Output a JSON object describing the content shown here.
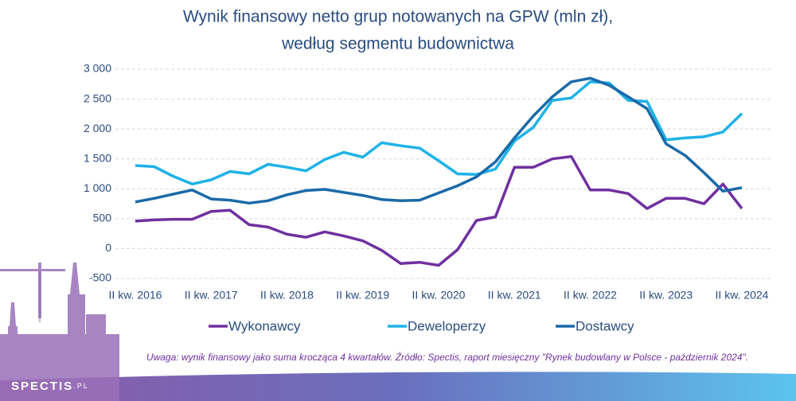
{
  "chart_data": {
    "type": "line",
    "title": [
      "Wynik finansowy netto grup notowanych na GPW (mln zł),",
      "według segmentu budownictwa"
    ],
    "categories": [
      "II kw. 2016",
      null,
      null,
      null,
      "II kw. 2017",
      null,
      null,
      null,
      "II kw. 2018",
      null,
      null,
      null,
      "II kw. 2019",
      null,
      null,
      null,
      "II kw. 2020",
      null,
      null,
      null,
      "II kw. 2021",
      null,
      null,
      null,
      "II kw. 2022",
      null,
      null,
      null,
      "II kw. 2023",
      null,
      null,
      null,
      "II kw. 2024"
    ],
    "series": [
      {
        "name": "Wykonawcy",
        "color": "#7030a0",
        "values": [
          460,
          480,
          490,
          490,
          620,
          640,
          400,
          360,
          240,
          190,
          280,
          210,
          130,
          -30,
          -250,
          -230,
          -280,
          -20,
          470,
          530,
          1360,
          1360,
          1500,
          1540,
          980,
          980,
          920,
          670,
          840,
          840,
          750,
          1080,
          670
        ]
      },
      {
        "name": "Deweloperzy",
        "color": "#1fb2e8",
        "values": [
          1390,
          1370,
          1210,
          1080,
          1150,
          1290,
          1250,
          1410,
          1360,
          1300,
          1490,
          1610,
          1530,
          1770,
          1720,
          1680,
          1470,
          1250,
          1240,
          1330,
          1800,
          2030,
          2480,
          2520,
          2790,
          2770,
          2480,
          2460,
          1820,
          1850,
          1870,
          1950,
          2260
        ]
      },
      {
        "name": "Dostawcy",
        "color": "#1a6aa8",
        "values": [
          780,
          840,
          910,
          980,
          830,
          810,
          760,
          800,
          900,
          970,
          990,
          940,
          890,
          820,
          800,
          810,
          930,
          1050,
          1200,
          1450,
          1850,
          2220,
          2540,
          2790,
          2850,
          2730,
          2540,
          2340,
          1750,
          1560,
          1270,
          960,
          1020
        ]
      }
    ],
    "ylim": [
      -500,
      3000
    ],
    "yticks": [
      -500,
      0,
      500,
      {
        "value": 1000,
        "label": "1 000"
      },
      {
        "value": 1500,
        "label": "1 500"
      },
      {
        "value": 2000,
        "label": "2 000"
      },
      {
        "value": 2500,
        "label": "2 500"
      },
      {
        "value": 3000,
        "label": "3 000"
      }
    ],
    "grid": true,
    "legend": "bottom",
    "note": "Uwaga: wynik finansowy jako suma krocząca 4 kwartałów. Źródło: Spectis, raport miesięczny \"Rynek budowlany w Polsce - październik 2024\".",
    "logo": [
      "SPECTIS",
      ".PL"
    ]
  }
}
